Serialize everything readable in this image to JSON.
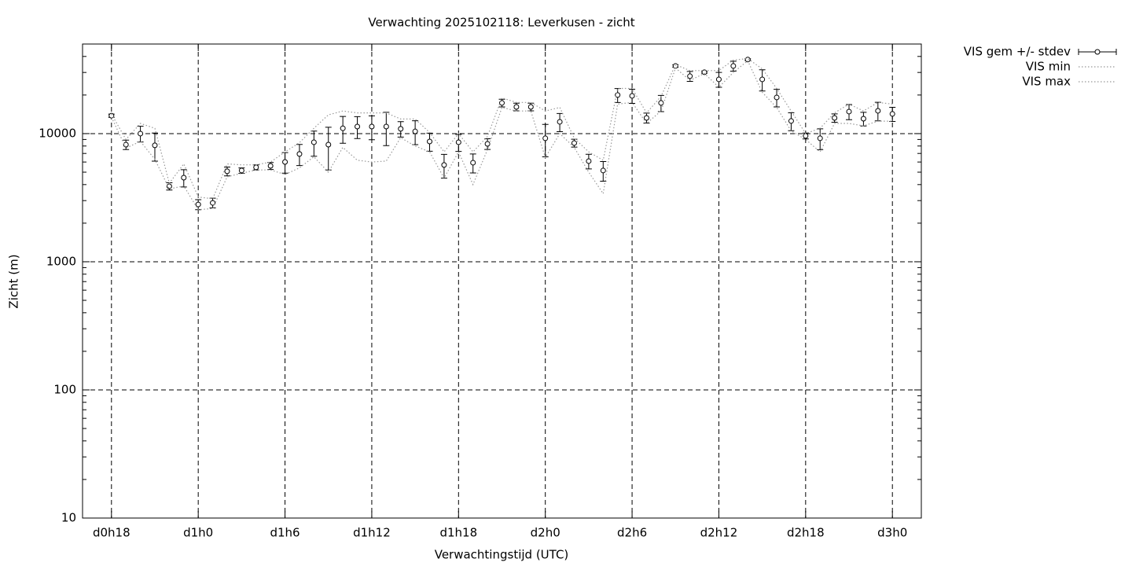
{
  "chart_data": {
    "type": "errorbar",
    "title": "Verwachting 2025102118: Leverkusen - zicht",
    "xlabel": "Verwachtingstijd (UTC)",
    "ylabel": "Zicht (m)",
    "log_y": true,
    "grid": true,
    "legend": "outside-top-right",
    "xlim": [
      16,
      74
    ],
    "ylim": [
      10,
      50000
    ],
    "xticks": [
      {
        "value": 18,
        "label": "d0h18"
      },
      {
        "value": 24,
        "label": "d1h0"
      },
      {
        "value": 30,
        "label": "d1h6"
      },
      {
        "value": 36,
        "label": "d1h12"
      },
      {
        "value": 42,
        "label": "d1h18"
      },
      {
        "value": 48,
        "label": "d2h0"
      },
      {
        "value": 54,
        "label": "d2h6"
      },
      {
        "value": 60,
        "label": "d2h12"
      },
      {
        "value": 66,
        "label": "d2h18"
      },
      {
        "value": 72,
        "label": "d3h0"
      }
    ],
    "yticks": [
      10,
      100,
      1000,
      10000
    ],
    "x": [
      18,
      19,
      20,
      21,
      22,
      23,
      24,
      25,
      26,
      27,
      28,
      29,
      30,
      31,
      32,
      33,
      34,
      35,
      36,
      37,
      38,
      39,
      40,
      41,
      42,
      43,
      44,
      45,
      46,
      47,
      48,
      49,
      50,
      51,
      52,
      53,
      54,
      55,
      56,
      57,
      58,
      59,
      60,
      61,
      62,
      63,
      64,
      65,
      66,
      67,
      68,
      69,
      70,
      71,
      72
    ],
    "series": [
      {
        "name": "VIS gem +/- stdev",
        "color": "#000000",
        "values": [
          13800,
          8200,
          10000,
          8100,
          3880,
          4530,
          2800,
          2880,
          5080,
          5150,
          5450,
          5600,
          6010,
          6930,
          8560,
          8200,
          11000,
          11350,
          11350,
          11350,
          10900,
          10400,
          8680,
          5690,
          8560,
          5930,
          8320,
          17350,
          16160,
          16160,
          9190,
          12360,
          8440,
          6100,
          5150,
          19990,
          19700,
          13260,
          17350,
          33700,
          28050,
          30100,
          26500,
          33700,
          37800,
          26500,
          19150,
          12540,
          9590,
          9190,
          13260,
          14850,
          13070,
          15060,
          14240
        ],
        "errors": [
          400,
          700,
          1400,
          2000,
          250,
          700,
          250,
          250,
          400,
          250,
          250,
          350,
          1100,
          1300,
          1900,
          3000,
          2600,
          2200,
          2400,
          3300,
          1500,
          2200,
          1400,
          1200,
          1300,
          1000,
          800,
          1200,
          1100,
          1100,
          2600,
          2000,
          600,
          800,
          900,
          2500,
          2500,
          1200,
          2500,
          700,
          2500,
          500,
          3500,
          3000,
          600,
          5000,
          3000,
          2000,
          500,
          1700,
          1000,
          2000,
          1600,
          2500,
          1800
        ]
      },
      {
        "name": "VIS min",
        "color": "#999999",
        "values": [
          13400,
          7700,
          8700,
          6300,
          3700,
          3900,
          2550,
          2600,
          4600,
          4900,
          5200,
          5200,
          4800,
          5400,
          6600,
          5000,
          7800,
          6200,
          6000,
          6100,
          9300,
          8000,
          7200,
          4500,
          7200,
          4000,
          7500,
          16000,
          15000,
          15000,
          6500,
          10000,
          7800,
          5000,
          3400,
          17000,
          17500,
          12000,
          15000,
          32500,
          26000,
          29500,
          23000,
          30000,
          37000,
          21000,
          16000,
          10500,
          9000,
          7200,
          12000,
          12000,
          11500,
          12500,
          12500
        ]
      },
      {
        "name": "VIS max",
        "color": "#999999",
        "values": [
          14200,
          9000,
          12000,
          11000,
          4100,
          5800,
          3200,
          3100,
          5800,
          5700,
          5700,
          6000,
          7200,
          8500,
          11000,
          14000,
          15000,
          14500,
          14500,
          14500,
          13000,
          13000,
          10200,
          7200,
          10000,
          7200,
          9500,
          19000,
          17500,
          17500,
          15000,
          16000,
          9200,
          7200,
          6200,
          22500,
          22500,
          14500,
          19500,
          34500,
          31000,
          31000,
          31000,
          37500,
          38500,
          32000,
          22500,
          15000,
          10000,
          11000,
          14500,
          17000,
          15000,
          17500,
          17000
        ]
      }
    ]
  }
}
